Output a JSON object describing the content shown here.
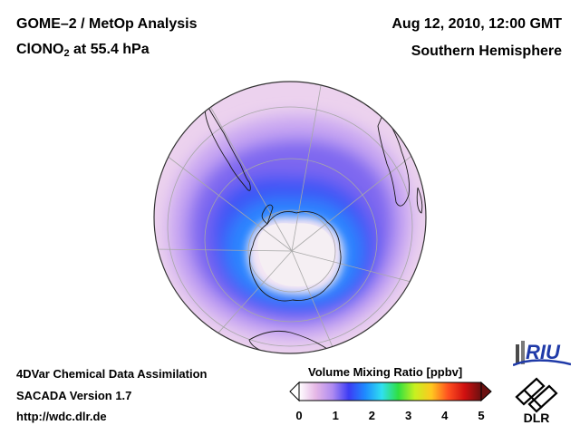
{
  "header": {
    "title_line1": "GOME–2 / MetOp Analysis",
    "title_line2_prefix": "ClONO",
    "title_line2_sub": "2",
    "title_line2_suffix": " at 55.4 hPa",
    "date": "Aug 12, 2010, 12:00 GMT",
    "hemisphere": "Southern Hemisphere"
  },
  "footer": {
    "line1": "4DVar Chemical Data Assimilation",
    "line2": "SACADA Version 1.7",
    "line3": "http://wdc.dlr.de"
  },
  "colorbar": {
    "title": "Volume Mixing Ratio [ppbv]",
    "ticks": [
      "0",
      "1",
      "2",
      "3",
      "4",
      "5"
    ],
    "range": [
      0,
      5
    ],
    "colors": [
      "#ffffff",
      "#e6b8e6",
      "#b08cf0",
      "#3c3cf5",
      "#1e8cff",
      "#30e0f0",
      "#30e040",
      "#c8f020",
      "#ffc820",
      "#ff5020",
      "#d01010",
      "#6a1010"
    ]
  },
  "map": {
    "projection": "orthographic, south pole centered",
    "field": "ClONO2",
    "colors": {
      "outer": "#ecd2ee",
      "ring_lavender": "#c8a6f2",
      "ring_violet": "#7e68f0",
      "ring_blue": "#3e54f6",
      "ring_core": "#2a86ff",
      "inner_pale": "#f4e6f4",
      "vortex": "#f5eff3"
    }
  },
  "logos": {
    "riu": "RIU",
    "dlr": "DLR"
  }
}
